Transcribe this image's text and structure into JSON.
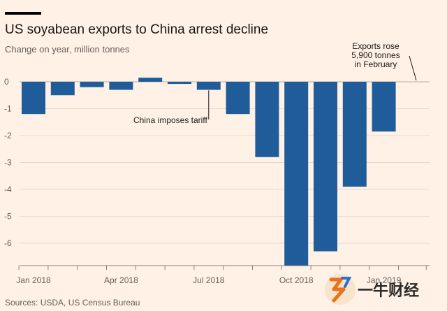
{
  "header": {
    "title": "US soyabean exports to China arrest decline",
    "subtitle": "Change on year, million tonnes"
  },
  "footer": {
    "source": "Sources: USDA, US Census Bureau"
  },
  "watermark": {
    "text": "一牛财经"
  },
  "colors": {
    "bar": "#1f5c99",
    "background": "#fff1e5",
    "grid": "#e6d9ce",
    "zero": "#b8aca3"
  },
  "chart_data": {
    "type": "bar",
    "categories": [
      "Jan 2018",
      "Feb 2018",
      "Mar 2018",
      "Apr 2018",
      "May 2018",
      "Jun 2018",
      "Jul 2018",
      "Aug 2018",
      "Sep 2018",
      "Oct 2018",
      "Nov 2018",
      "Dec 2018",
      "Jan 2019",
      "Feb 2019"
    ],
    "values": [
      -1.2,
      -0.5,
      -0.2,
      -0.3,
      0.15,
      -0.08,
      -0.3,
      -1.2,
      -2.8,
      -6.85,
      -6.3,
      -3.9,
      -1.85,
      0.0059
    ],
    "title": "US soyabean exports to China arrest decline",
    "ylabel": "Change on year, million tonnes",
    "xlabel": "",
    "ylim": [
      -6.85,
      0.3
    ],
    "yticks": [
      "0",
      "-1",
      "-2",
      "-3",
      "-4",
      "-5",
      "-6"
    ],
    "xticks": [
      "Jan 2018",
      "Apr 2018",
      "Jul 2018",
      "Oct 2018",
      "Jan 2019"
    ],
    "grid": true,
    "annotations": [
      {
        "text": "China imposes tariff",
        "category": "Jul 2018"
      },
      {
        "lines": [
          "Exports rose",
          "5,900 tonnes",
          "in February"
        ],
        "category": "Feb 2019"
      }
    ]
  }
}
